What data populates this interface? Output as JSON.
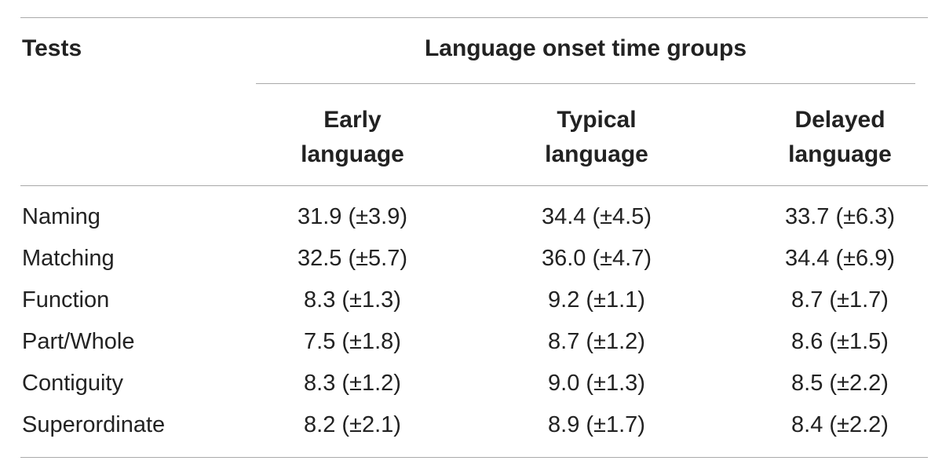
{
  "table": {
    "tests_header": "Tests",
    "group_header": "Language onset time groups",
    "columns": [
      [
        "Early",
        "language"
      ],
      [
        "Typical",
        "language"
      ],
      [
        "Delayed",
        "language"
      ]
    ],
    "rows": [
      {
        "label": "Naming",
        "values": [
          "31.9 (±3.9)",
          "34.4 (±4.5)",
          "33.7 (±6.3)"
        ]
      },
      {
        "label": "Matching",
        "values": [
          "32.5 (±5.7)",
          "36.0 (±4.7)",
          "34.4 (±6.9)"
        ]
      },
      {
        "label": "Function",
        "values": [
          "8.3 (±1.3)",
          "9.2 (±1.1)",
          "8.7 (±1.7)"
        ]
      },
      {
        "label": "Part/Whole",
        "values": [
          "7.5 (±1.8)",
          "8.7 (±1.2)",
          "8.6 (±1.5)"
        ]
      },
      {
        "label": "Contiguity",
        "values": [
          "8.3 (±1.2)",
          "9.0 (±1.3)",
          "8.5 (±2.2)"
        ]
      },
      {
        "label": "Superordinate",
        "values": [
          "8.2 (±2.1)",
          "8.9 (±1.7)",
          "8.4 (±2.2)"
        ]
      }
    ]
  }
}
